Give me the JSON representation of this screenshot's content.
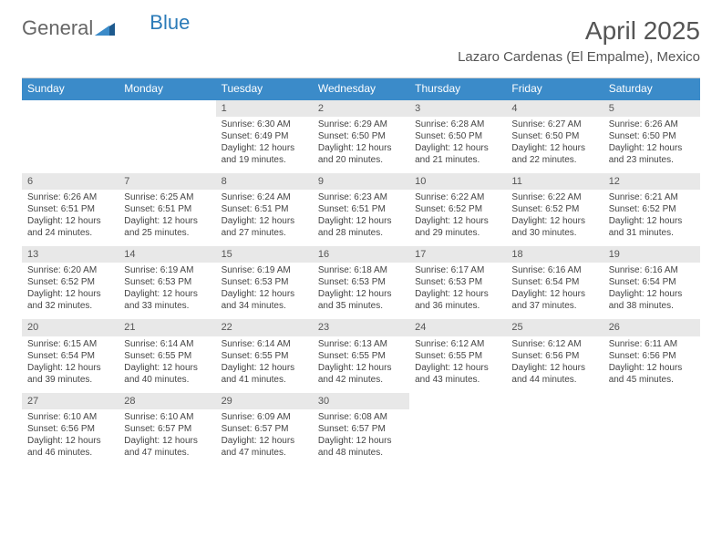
{
  "brand": {
    "part1": "General",
    "part2": "Blue"
  },
  "title": "April 2025",
  "location": "Lazaro Cardenas (El Empalme), Mexico",
  "colors": {
    "header_bg": "#3b8bc9",
    "header_text": "#ffffff",
    "daynum_bg": "#e8e8e8",
    "text": "#444444",
    "brand_gray": "#666666",
    "brand_blue": "#2a7ab8"
  },
  "day_headers": [
    "Sunday",
    "Monday",
    "Tuesday",
    "Wednesday",
    "Thursday",
    "Friday",
    "Saturday"
  ],
  "weeks": [
    {
      "nums": [
        "",
        "",
        "1",
        "2",
        "3",
        "4",
        "5"
      ],
      "cells": [
        null,
        null,
        {
          "sunrise": "Sunrise: 6:30 AM",
          "sunset": "Sunset: 6:49 PM",
          "day": "Daylight: 12 hours and 19 minutes."
        },
        {
          "sunrise": "Sunrise: 6:29 AM",
          "sunset": "Sunset: 6:50 PM",
          "day": "Daylight: 12 hours and 20 minutes."
        },
        {
          "sunrise": "Sunrise: 6:28 AM",
          "sunset": "Sunset: 6:50 PM",
          "day": "Daylight: 12 hours and 21 minutes."
        },
        {
          "sunrise": "Sunrise: 6:27 AM",
          "sunset": "Sunset: 6:50 PM",
          "day": "Daylight: 12 hours and 22 minutes."
        },
        {
          "sunrise": "Sunrise: 6:26 AM",
          "sunset": "Sunset: 6:50 PM",
          "day": "Daylight: 12 hours and 23 minutes."
        }
      ]
    },
    {
      "nums": [
        "6",
        "7",
        "8",
        "9",
        "10",
        "11",
        "12"
      ],
      "cells": [
        {
          "sunrise": "Sunrise: 6:26 AM",
          "sunset": "Sunset: 6:51 PM",
          "day": "Daylight: 12 hours and 24 minutes."
        },
        {
          "sunrise": "Sunrise: 6:25 AM",
          "sunset": "Sunset: 6:51 PM",
          "day": "Daylight: 12 hours and 25 minutes."
        },
        {
          "sunrise": "Sunrise: 6:24 AM",
          "sunset": "Sunset: 6:51 PM",
          "day": "Daylight: 12 hours and 27 minutes."
        },
        {
          "sunrise": "Sunrise: 6:23 AM",
          "sunset": "Sunset: 6:51 PM",
          "day": "Daylight: 12 hours and 28 minutes."
        },
        {
          "sunrise": "Sunrise: 6:22 AM",
          "sunset": "Sunset: 6:52 PM",
          "day": "Daylight: 12 hours and 29 minutes."
        },
        {
          "sunrise": "Sunrise: 6:22 AM",
          "sunset": "Sunset: 6:52 PM",
          "day": "Daylight: 12 hours and 30 minutes."
        },
        {
          "sunrise": "Sunrise: 6:21 AM",
          "sunset": "Sunset: 6:52 PM",
          "day": "Daylight: 12 hours and 31 minutes."
        }
      ]
    },
    {
      "nums": [
        "13",
        "14",
        "15",
        "16",
        "17",
        "18",
        "19"
      ],
      "cells": [
        {
          "sunrise": "Sunrise: 6:20 AM",
          "sunset": "Sunset: 6:52 PM",
          "day": "Daylight: 12 hours and 32 minutes."
        },
        {
          "sunrise": "Sunrise: 6:19 AM",
          "sunset": "Sunset: 6:53 PM",
          "day": "Daylight: 12 hours and 33 minutes."
        },
        {
          "sunrise": "Sunrise: 6:19 AM",
          "sunset": "Sunset: 6:53 PM",
          "day": "Daylight: 12 hours and 34 minutes."
        },
        {
          "sunrise": "Sunrise: 6:18 AM",
          "sunset": "Sunset: 6:53 PM",
          "day": "Daylight: 12 hours and 35 minutes."
        },
        {
          "sunrise": "Sunrise: 6:17 AM",
          "sunset": "Sunset: 6:53 PM",
          "day": "Daylight: 12 hours and 36 minutes."
        },
        {
          "sunrise": "Sunrise: 6:16 AM",
          "sunset": "Sunset: 6:54 PM",
          "day": "Daylight: 12 hours and 37 minutes."
        },
        {
          "sunrise": "Sunrise: 6:16 AM",
          "sunset": "Sunset: 6:54 PM",
          "day": "Daylight: 12 hours and 38 minutes."
        }
      ]
    },
    {
      "nums": [
        "20",
        "21",
        "22",
        "23",
        "24",
        "25",
        "26"
      ],
      "cells": [
        {
          "sunrise": "Sunrise: 6:15 AM",
          "sunset": "Sunset: 6:54 PM",
          "day": "Daylight: 12 hours and 39 minutes."
        },
        {
          "sunrise": "Sunrise: 6:14 AM",
          "sunset": "Sunset: 6:55 PM",
          "day": "Daylight: 12 hours and 40 minutes."
        },
        {
          "sunrise": "Sunrise: 6:14 AM",
          "sunset": "Sunset: 6:55 PM",
          "day": "Daylight: 12 hours and 41 minutes."
        },
        {
          "sunrise": "Sunrise: 6:13 AM",
          "sunset": "Sunset: 6:55 PM",
          "day": "Daylight: 12 hours and 42 minutes."
        },
        {
          "sunrise": "Sunrise: 6:12 AM",
          "sunset": "Sunset: 6:55 PM",
          "day": "Daylight: 12 hours and 43 minutes."
        },
        {
          "sunrise": "Sunrise: 6:12 AM",
          "sunset": "Sunset: 6:56 PM",
          "day": "Daylight: 12 hours and 44 minutes."
        },
        {
          "sunrise": "Sunrise: 6:11 AM",
          "sunset": "Sunset: 6:56 PM",
          "day": "Daylight: 12 hours and 45 minutes."
        }
      ]
    },
    {
      "nums": [
        "27",
        "28",
        "29",
        "30",
        "",
        "",
        ""
      ],
      "cells": [
        {
          "sunrise": "Sunrise: 6:10 AM",
          "sunset": "Sunset: 6:56 PM",
          "day": "Daylight: 12 hours and 46 minutes."
        },
        {
          "sunrise": "Sunrise: 6:10 AM",
          "sunset": "Sunset: 6:57 PM",
          "day": "Daylight: 12 hours and 47 minutes."
        },
        {
          "sunrise": "Sunrise: 6:09 AM",
          "sunset": "Sunset: 6:57 PM",
          "day": "Daylight: 12 hours and 47 minutes."
        },
        {
          "sunrise": "Sunrise: 6:08 AM",
          "sunset": "Sunset: 6:57 PM",
          "day": "Daylight: 12 hours and 48 minutes."
        },
        null,
        null,
        null
      ]
    }
  ]
}
